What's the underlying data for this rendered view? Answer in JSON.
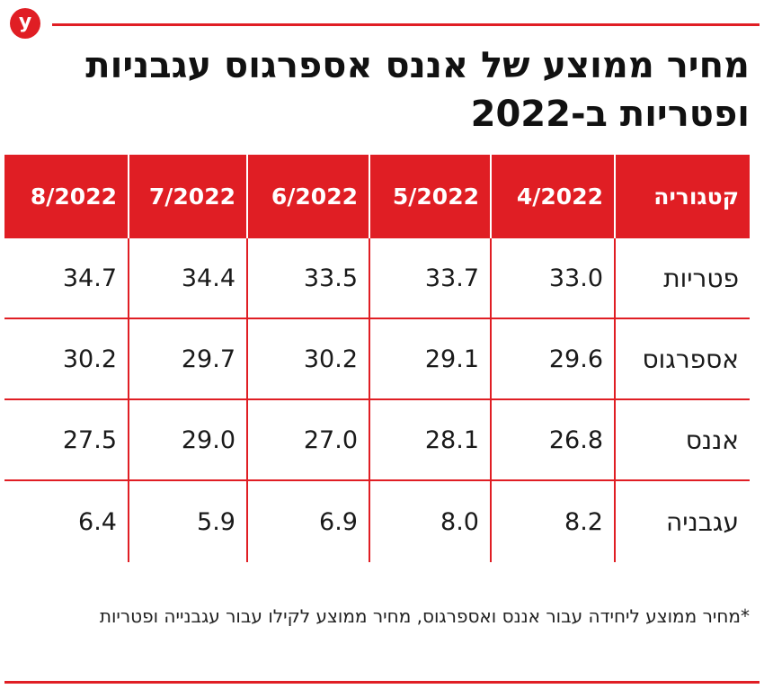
{
  "brand": {
    "logo_letter": "y",
    "accent_color": "#e01e24"
  },
  "title": "מחיר ממוצע של אננס אספרגוס עגבניות ופטריות ב-2022",
  "footnote": "*מחיר ממוצע ליחידה עבור אננס ואספרגוס, מחיר ממוצע לקילו עבור עגבנייה ופטריות",
  "chart_data": {
    "type": "table",
    "title": "מחיר ממוצע של אננס אספרגוס עגבניות ופטריות ב-2022",
    "columns": [
      "קטגוריה",
      "4/2022",
      "5/2022",
      "6/2022",
      "7/2022",
      "8/2022"
    ],
    "rows": [
      {
        "category": "פטריות",
        "values": [
          "33.0",
          "33.7",
          "33.5",
          "34.4",
          "34.7"
        ]
      },
      {
        "category": "אספרגוס",
        "values": [
          "29.6",
          "29.1",
          "30.2",
          "29.7",
          "30.2"
        ]
      },
      {
        "category": "אננס",
        "values": [
          "26.8",
          "28.1",
          "27.0",
          "29.0",
          "27.5"
        ]
      },
      {
        "category": "עגבניה",
        "values": [
          "8.2",
          "8.0",
          "6.9",
          "5.9",
          "6.4"
        ]
      }
    ]
  }
}
